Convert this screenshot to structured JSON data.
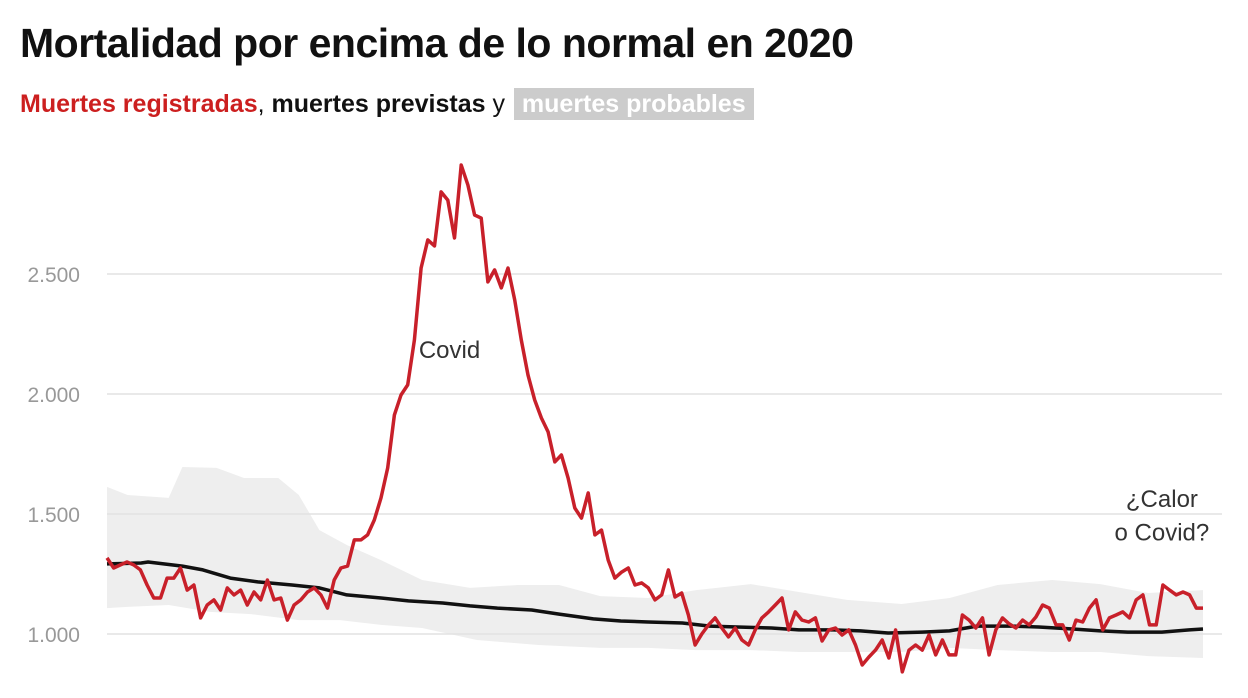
{
  "header": {
    "title": "Mortalidad por encima de lo normal en 2020",
    "subtitle": {
      "registered": "Muertes registradas",
      "comma": ",",
      "expected": " muertes previstas",
      "and": " y ",
      "probable": "muertes probables"
    }
  },
  "colors": {
    "registered": "#c8202a",
    "expected": "#111111",
    "band": "#eeeeee",
    "pill": "#cccccc",
    "grid": "#e2e2e2",
    "tick": "#999999"
  },
  "chart_data": {
    "type": "line",
    "title": "Mortalidad por encima de lo normal en 2020",
    "xlabel": "",
    "ylabel": "",
    "x_range": [
      0,
      160
    ],
    "ylim": [
      830,
      3000
    ],
    "yticks": [
      1000,
      1500,
      2000,
      2500
    ],
    "ytick_labels": [
      "1.000",
      "1.500",
      "2.000",
      "2.500"
    ],
    "grid": true,
    "legend": "subtitle",
    "annotations": [
      {
        "text": "Covid",
        "x": 50,
        "y": 2150
      },
      {
        "text": "¿Calor",
        "x": 154,
        "y": 1530
      },
      {
        "text": "o Covid?",
        "x": 154,
        "y": 1390
      }
    ],
    "series": [
      {
        "name": "Muertes registradas",
        "values": [
          1317,
          1275,
          1288,
          1300,
          1288,
          1267,
          1204,
          1150,
          1150,
          1233,
          1233,
          1275,
          1183,
          1204,
          1067,
          1121,
          1142,
          1100,
          1192,
          1163,
          1183,
          1121,
          1175,
          1142,
          1225,
          1142,
          1150,
          1058,
          1121,
          1142,
          1175,
          1192,
          1163,
          1108,
          1225,
          1275,
          1283,
          1392,
          1392,
          1413,
          1475,
          1567,
          1692,
          1913,
          1996,
          2038,
          2225,
          2525,
          2642,
          2617,
          2842,
          2808,
          2650,
          2954,
          2871,
          2746,
          2733,
          2467,
          2517,
          2442,
          2525,
          2392,
          2225,
          2079,
          1975,
          1900,
          1842,
          1717,
          1746,
          1650,
          1525,
          1483,
          1588,
          1413,
          1433,
          1308,
          1233,
          1258,
          1275,
          1204,
          1213,
          1192,
          1142,
          1163,
          1267,
          1154,
          1171,
          1079,
          954,
          1000,
          1038,
          1067,
          1025,
          988,
          1025,
          975,
          954,
          1017,
          1067,
          1092,
          1121,
          1150,
          1017,
          1092,
          1058,
          1050,
          1067,
          971,
          1017,
          1025,
          996,
          1017,
          954,
          871,
          904,
          933,
          975,
          900,
          1017,
          842,
          933,
          954,
          933,
          996,
          913,
          975,
          913,
          913,
          1079,
          1058,
          1025,
          1067,
          913,
          1017,
          1067,
          1042,
          1025,
          1058,
          1038,
          1071,
          1121,
          1108,
          1038,
          1038,
          975,
          1058,
          1050,
          1108,
          1142,
          1017,
          1067,
          1079,
          1092,
          1067,
          1142,
          1163,
          1038,
          1038,
          1204,
          1183,
          1163,
          1175,
          1163,
          1108,
          1108
        ]
      },
      {
        "name": "muertes previstas",
        "x": [
          0,
          5,
          6,
          11,
          14,
          18,
          22,
          27,
          31,
          35,
          40,
          44,
          49,
          53,
          57,
          62,
          66,
          71,
          75,
          79,
          84,
          88,
          92,
          97,
          101,
          106,
          110,
          114,
          119,
          123,
          127,
          132,
          136,
          141,
          145,
          149,
          154,
          158,
          160
        ],
        "values": [
          1292,
          1296,
          1300,
          1283,
          1267,
          1233,
          1217,
          1204,
          1192,
          1163,
          1150,
          1138,
          1129,
          1117,
          1108,
          1100,
          1083,
          1063,
          1054,
          1050,
          1046,
          1033,
          1029,
          1025,
          1017,
          1017,
          1013,
          1004,
          1008,
          1013,
          1033,
          1033,
          1029,
          1021,
          1013,
          1008,
          1008,
          1017,
          1021
        ]
      },
      {
        "name": "muertes probables (máximo)",
        "x": [
          0,
          3,
          9,
          11,
          16,
          20,
          25,
          28,
          31,
          35,
          40,
          46,
          53,
          60,
          66,
          72,
          79,
          86,
          94,
          101,
          108,
          116,
          123,
          130,
          138,
          145,
          152,
          160
        ],
        "values": [
          1613,
          1579,
          1567,
          1696,
          1692,
          1650,
          1650,
          1579,
          1433,
          1371,
          1308,
          1225,
          1192,
          1204,
          1204,
          1158,
          1150,
          1183,
          1208,
          1175,
          1142,
          1125,
          1150,
          1204,
          1225,
          1208,
          1171,
          1183
        ]
      },
      {
        "name": "muertes probables (mínimo)",
        "x": [
          0,
          3,
          9,
          15,
          21,
          28,
          34,
          40,
          46,
          54,
          63,
          72,
          79,
          86,
          94,
          101,
          108,
          116,
          123,
          130,
          138,
          145,
          152,
          160
        ],
        "values": [
          1108,
          1113,
          1121,
          1092,
          1083,
          1058,
          1058,
          1038,
          1025,
          975,
          954,
          942,
          942,
          933,
          933,
          925,
          925,
          925,
          942,
          933,
          925,
          925,
          908,
          900
        ]
      }
    ]
  }
}
